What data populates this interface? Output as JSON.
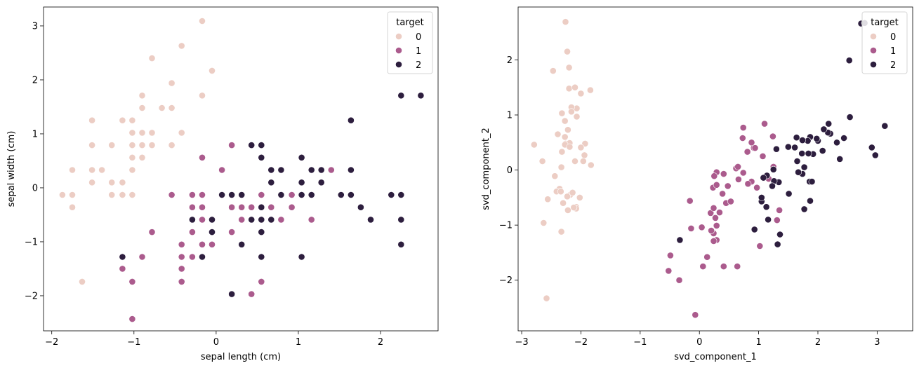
{
  "colors": {
    "0": "#eccdc4",
    "1": "#ab5b8d",
    "2": "#2d1e3e"
  },
  "chart_data": [
    {
      "type": "scatter",
      "xlabel": "sepal length (cm)",
      "ylabel": "sepal width (cm)",
      "xlim": [
        -2.1,
        2.7
      ],
      "ylim": [
        -2.65,
        3.35
      ],
      "xticks": [
        -2,
        -1,
        0,
        1,
        2
      ],
      "yticks": [
        -2,
        -1,
        0,
        1,
        2,
        3
      ],
      "xtick_labels": [
        "−2",
        "−1",
        "0",
        "1",
        "2"
      ],
      "ytick_labels": [
        "−2",
        "−1",
        "0",
        "1",
        "2",
        "3"
      ],
      "legend": {
        "title": "target",
        "entries": [
          "0",
          "1",
          "2"
        ],
        "placement": "top-right"
      },
      "series": [
        {
          "name": "0",
          "x": [
            -0.9,
            -1.14,
            -1.39,
            -1.51,
            -1.02,
            -0.54,
            -1.51,
            -1.02,
            -1.75,
            -1.14,
            -0.54,
            -1.27,
            -1.27,
            -1.87,
            -0.05,
            -0.17,
            -0.54,
            -0.9,
            -0.17,
            -0.9,
            -0.54,
            -0.9,
            -1.51,
            -0.9,
            -1.27,
            -1.02,
            -1.02,
            -0.78,
            -0.78,
            -1.39,
            -1.27,
            -0.54,
            -0.78,
            -0.42,
            -1.14,
            -1.02,
            -0.42,
            -1.14,
            -1.75,
            -0.9,
            -1.02,
            -1.63,
            -1.75,
            -1.02,
            -0.9,
            -1.27,
            -0.9,
            -1.51,
            -0.66,
            -1.02
          ],
          "y": [
            1.02,
            -0.13,
            0.33,
            0.1,
            1.25,
            1.94,
            0.79,
            0.79,
            -0.36,
            0.1,
            1.48,
            0.79,
            -0.13,
            -0.13,
            2.17,
            3.09,
            1.94,
            1.02,
            1.71,
            1.71,
            0.79,
            1.48,
            1.25,
            0.56,
            0.79,
            -0.13,
            0.79,
            1.02,
            0.79,
            0.33,
            0.1,
            0.79,
            2.4,
            2.63,
            0.1,
            0.33,
            1.02,
            1.25,
            -0.13,
            0.79,
            1.02,
            -1.74,
            0.33,
            1.02,
            1.71,
            -0.13,
            1.71,
            0.33,
            1.48,
            0.56
          ]
        },
        {
          "name": "1",
          "x": [
            1.4,
            0.67,
            1.28,
            -0.42,
            0.79,
            -0.17,
            0.55,
            -1.14,
            0.92,
            -0.78,
            -1.02,
            0.07,
            0.19,
            0.31,
            -0.29,
            1.04,
            -0.29,
            -0.05,
            0.43,
            -0.29,
            0.07,
            0.31,
            0.55,
            0.31,
            0.67,
            0.92,
            1.16,
            1.04,
            0.19,
            -0.17,
            -0.42,
            -0.42,
            -0.05,
            0.19,
            -0.54,
            0.19,
            1.04,
            0.55,
            -0.29,
            -0.42,
            -0.42,
            0.31,
            -0.05,
            -1.02,
            -0.29,
            -0.17,
            -0.17,
            0.43,
            -0.9,
            -0.17
          ],
          "y": [
            0.33,
            0.33,
            0.1,
            -1.74,
            -0.59,
            0.56,
            -0.13,
            -1.5,
            -0.36,
            -0.82,
            -2.43,
            -0.13,
            -1.97,
            -0.36,
            -0.36,
            0.1,
            -0.13,
            -0.82,
            -1.97,
            -1.28,
            0.33,
            -0.59,
            -1.28,
            -0.59,
            -0.36,
            -0.13,
            -0.59,
            -0.13,
            -0.36,
            -1.05,
            -1.5,
            -1.5,
            -0.82,
            -0.82,
            -0.13,
            0.79,
            0.1,
            -1.74,
            -0.13,
            -1.28,
            -1.05,
            -0.13,
            -1.05,
            -1.74,
            -0.82,
            -0.13,
            -0.36,
            -0.36,
            -1.28,
            -0.59
          ]
        },
        {
          "name": "2",
          "x": [
            0.55,
            -0.05,
            1.52,
            0.55,
            0.79,
            2.13,
            -1.14,
            1.76,
            1.04,
            1.64,
            0.79,
            0.67,
            1.16,
            -0.17,
            -0.05,
            0.67,
            0.79,
            2.25,
            2.25,
            0.19,
            1.28,
            -0.29,
            2.25,
            0.55,
            1.04,
            1.64,
            0.43,
            0.31,
            0.67,
            1.64,
            1.88,
            2.49,
            0.67,
            0.55,
            0.31,
            2.25,
            0.55,
            0.67,
            0.19,
            1.28,
            1.04,
            1.28,
            -0.05,
            1.16,
            1.04,
            1.04,
            0.55,
            0.79,
            0.43,
            0.07
          ],
          "y": [
            0.56,
            -0.82,
            -0.13,
            -0.36,
            -0.13,
            -0.13,
            -1.28,
            -0.36,
            -1.28,
            1.25,
            0.33,
            -0.59,
            -0.13,
            -1.28,
            -0.59,
            0.33,
            -0.13,
            1.71,
            -1.05,
            -1.97,
            0.33,
            -0.59,
            -0.59,
            -0.82,
            0.56,
            0.33,
            -0.59,
            -0.13,
            -0.59,
            -0.13,
            -0.59,
            1.71,
            -0.59,
            -0.59,
            -1.05,
            -0.13,
            0.79,
            0.1,
            -0.13,
            0.1,
            0.1,
            0.1,
            -0.82,
            0.33,
            0.56,
            -0.13,
            -1.28,
            -0.13,
            0.79,
            -0.13
          ]
        }
      ]
    },
    {
      "type": "scatter",
      "xlabel": "svd_component_1",
      "ylabel": "svd_component_2",
      "xlim": [
        -3.06,
        3.6
      ],
      "ylim": [
        -2.92,
        2.96
      ],
      "xticks": [
        -3,
        -2,
        -1,
        0,
        1,
        2,
        3
      ],
      "yticks": [
        -2,
        -1,
        0,
        1,
        2
      ],
      "xtick_labels": [
        "−3",
        "−2",
        "−1",
        "0",
        "1",
        "2",
        "3"
      ],
      "ytick_labels": [
        "−2",
        "−1",
        "0",
        "1",
        "2"
      ],
      "legend": {
        "title": "target",
        "entries": [
          "0",
          "1",
          "2"
        ],
        "placement": "top-right"
      },
      "series": [
        {
          "name": "0",
          "x": [
            -2.26,
            -2.08,
            -2.36,
            -2.3,
            -2.39,
            -2.07,
            -2.44,
            -2.23,
            -2.33,
            -2.18,
            -2.16,
            -2.33,
            -2.22,
            -2.63,
            -2.2,
            -2.26,
            -2.2,
            -2.19,
            -2.0,
            -2.27,
            -1.94,
            -2.22,
            -2.79,
            -1.83,
            -2.02,
            -2.23,
            -2.1,
            -2.27,
            -2.27,
            -2.34,
            -2.41,
            -1.84,
            -2.47,
            -2.23,
            -2.14,
            -1.96,
            -2.32,
            -2.32,
            -2.08,
            -1.93,
            -2.19,
            -2.58,
            -2.56,
            -2.0,
            -2.07,
            -2.34,
            -2.1,
            -2.12,
            -2.16,
            -2.65
          ],
          "y": [
            0.48,
            -0.67,
            -0.34,
            -0.6,
            0.65,
            1.12,
            -0.11,
            0.46,
            -1.12,
            -0.45,
            1.14,
            0.05,
            -0.73,
            -0.96,
            1.86,
            2.69,
            1.48,
            0.49,
            1.39,
            0.89,
            0.27,
            0.73,
            0.46,
            0.09,
            -0.5,
            -0.48,
            0.16,
            0.6,
            0.46,
            -0.39,
            -0.39,
            1.45,
            1.8,
            2.15,
            -0.41,
            0.16,
            1.03,
            0.33,
            -0.7,
            0.48,
            0.42,
            -2.33,
            -0.53,
            0.41,
            0.97,
            -0.39,
            1.5,
            -0.68,
            1.06,
            0.16
          ]
        },
        {
          "name": "1",
          "x": [
            1.1,
            0.73,
            1.24,
            0.41,
            1.07,
            0.39,
            0.74,
            -0.49,
            0.92,
            0.04,
            -0.34,
            0.29,
            0.29,
            0.97,
            -0.16,
            0.88,
            0.48,
            0.27,
            1.02,
            0.29,
            0.88,
            0.41,
            1.35,
            0.82,
            0.62,
            0.81,
            1.17,
            1.25,
            0.66,
            -0.14,
            0.13,
            0.06,
            0.19,
            1.31,
            0.45,
            0.65,
            0.94,
            0.64,
            0.23,
            0.24,
            0.24,
            0.74,
            0.2,
            -0.52,
            0.34,
            0.25,
            0.29,
            0.53,
            -0.07,
            0.24
          ],
          "y": [
            0.84,
            0.58,
            0.61,
            -1.75,
            0.25,
            -0.43,
            0.77,
            -1.55,
            0.4,
            -1.04,
            -2.0,
            -0.04,
            -1.27,
            -0.32,
            -0.56,
            0.5,
            -0.29,
            -0.87,
            -1.38,
            -1.01,
            -0.21,
            -0.07,
            -0.73,
            -0.25,
            0.03,
            0.33,
            -0.16,
            0.06,
            -0.17,
            -1.06,
            -1.58,
            -1.75,
            -0.78,
            -0.91,
            -0.6,
            0.06,
            0.4,
            -1.75,
            -0.32,
            -1.29,
            -1.15,
            -0.05,
            -1.1,
            -1.83,
            -0.77,
            -0.11,
            -0.27,
            -0.57,
            -2.63,
            -0.69
          ]
        },
        {
          "name": "2",
          "x": [
            1.92,
            1.05,
            2.18,
            1.61,
            2.0,
            2.97,
            -0.33,
            2.37,
            1.87,
            2.53,
            1.3,
            1.51,
            1.77,
            1.36,
            1.77,
            1.84,
            1.65,
            2.73,
            3.13,
            0.93,
            2.32,
            1.16,
            2.91,
            1.34,
            1.87,
            2.21,
            1.26,
            1.25,
            1.86,
            2.08,
            2.44,
            2.79,
            1.9,
            1.23,
            1.13,
            2.54,
            1.83,
            1.73,
            1.14,
            1.74,
            1.98,
            1.5,
            1.05,
            2.17,
            2.1,
            1.74,
            1.32,
            1.67,
            1.64,
            1.08
          ],
          "y": [
            0.29,
            -0.57,
            0.84,
            0.41,
            0.53,
            0.27,
            -1.27,
            0.2,
            -0.56,
            1.99,
            0.38,
            -0.43,
            0.05,
            -1.17,
            -0.71,
            0.3,
            0.16,
            2.66,
            0.8,
            -1.08,
            0.5,
            -0.9,
            0.41,
            -0.22,
            0.6,
            0.66,
            -0.2,
            0.01,
            -0.21,
            0.35,
            0.58,
            2.67,
            -0.21,
            -0.29,
            -0.67,
            0.96,
            0.53,
            0.3,
            -0.1,
            0.54,
            0.57,
            0.42,
            -0.5,
            0.68,
            0.74,
            -0.07,
            -1.35,
            -0.04,
            0.59,
            -0.14
          ]
        }
      ]
    }
  ]
}
